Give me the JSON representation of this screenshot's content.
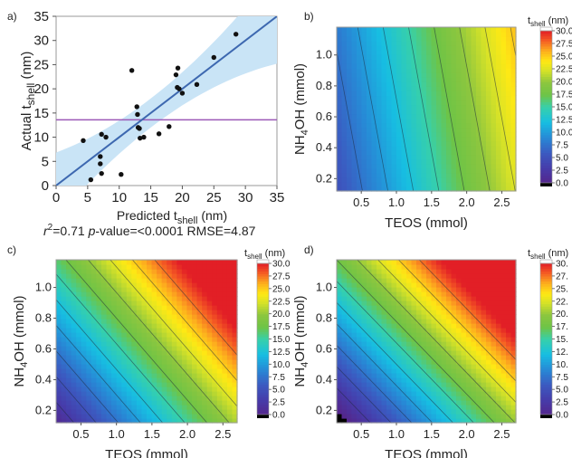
{
  "panels": [
    {
      "letter": "a)",
      "type": "scatter",
      "xlabel": "Predicted t",
      "xlabel_sub": "shell",
      "xlabel_unit": " (nm)",
      "ylabel": "Actual t",
      "ylabel_sub": "shell",
      "ylabel_unit": " (nm)",
      "xlim": [
        0,
        35
      ],
      "ylim": [
        0,
        35
      ],
      "xticks": [
        "0",
        "5",
        "10",
        "15",
        "20",
        "25",
        "30",
        "35"
      ],
      "yticks": [
        "0",
        "5",
        "10",
        "15",
        "20",
        "25",
        "30",
        "35"
      ],
      "points": [
        [
          5.5,
          1.2
        ],
        [
          4.3,
          9.3
        ],
        [
          7,
          6
        ],
        [
          7,
          4.5
        ],
        [
          7.2,
          2.5
        ],
        [
          7.2,
          10.6
        ],
        [
          7.9,
          10
        ],
        [
          10.3,
          2.3
        ],
        [
          12,
          23.8
        ],
        [
          12.8,
          16.3
        ],
        [
          12.9,
          14.7
        ],
        [
          13,
          12
        ],
        [
          13.2,
          11.8
        ],
        [
          13.3,
          9.8
        ],
        [
          13.9,
          10
        ],
        [
          16.3,
          10.7
        ],
        [
          17.9,
          12.2
        ],
        [
          19,
          22.9
        ],
        [
          19.2,
          20.3
        ],
        [
          19.3,
          24.3
        ],
        [
          19.5,
          20
        ],
        [
          20,
          19.1
        ],
        [
          22.3,
          20.9
        ],
        [
          25,
          26.5
        ],
        [
          28.5,
          31.3
        ]
      ],
      "fit_line": [
        [
          0,
          0
        ],
        [
          35,
          35
        ]
      ],
      "mean_line_y": 13.6,
      "colors": {
        "fit": "#3d68b0",
        "band": "#c9e4f6",
        "mean": "#9b59b6",
        "point": "#111111"
      },
      "stats": {
        "r2_label": "r",
        "r2_sup": "2",
        "r2_value": "=0.71 ",
        "pvalue_label": "p",
        "pvalue_value": "-value=<0.0001 RMSE=4.87"
      }
    },
    {
      "letter": "b)",
      "type": "heatmap",
      "xlabel": "TEOS (mmol)",
      "ylabel_pre": "NH",
      "ylabel_sub": "4",
      "ylabel_post": "OH (mmol)",
      "xlim": [
        0.15,
        2.7
      ],
      "ylim": [
        0.12,
        1.18
      ],
      "xticks": [
        "0.5",
        "1.0",
        "1.5",
        "2.0",
        "2.5"
      ],
      "yticks": [
        "0.2",
        "0.4",
        "0.6",
        "0.8",
        "1.0"
      ],
      "surface": {
        "base": 3.6,
        "teos_coef": 6.9,
        "nh4oh_coef": 2.8
      },
      "colorbar": {
        "title": "t",
        "title_sub": "shell",
        "title_unit": " (nm)",
        "ticks": [
          "30.0",
          "27.5",
          "25.0",
          "22.5",
          "20.0",
          "17.5",
          "15.0",
          "12.5",
          "10.0",
          "7.5",
          "5.0",
          "2.5",
          "0.0"
        ]
      }
    },
    {
      "letter": "c)",
      "type": "heatmap",
      "xlabel": "TEOS (mmol)",
      "ylabel_pre": "NH",
      "ylabel_sub": "4",
      "ylabel_post": "OH (mmol)",
      "xlim": [
        0.15,
        2.7
      ],
      "ylim": [
        0.12,
        1.18
      ],
      "xticks": [
        "0.5",
        "1.0",
        "1.5",
        "2.0",
        "2.5"
      ],
      "yticks": [
        "0.2",
        "0.4",
        "0.6",
        "0.8",
        "1.0"
      ],
      "surface": {
        "base": -2.5,
        "teos_coef": 8.0,
        "nh4oh_coef": 15.0
      },
      "colorbar": {
        "title": "t",
        "title_sub": "shell",
        "title_unit": " (nm)",
        "ticks": [
          "30.0",
          "27.5",
          "25.0",
          "22.5",
          "20.0",
          "17.5",
          "15.0",
          "12.5",
          "10.0",
          "7.5",
          "5.0",
          "2.5",
          "0.0"
        ]
      }
    },
    {
      "letter": "d)",
      "type": "heatmap",
      "xlabel": "TEOS (mmol)",
      "ylabel_pre": "NH",
      "ylabel_sub": "4",
      "ylabel_post": "OH (mmol)",
      "xlim": [
        0.15,
        2.7
      ],
      "ylim": [
        0.12,
        1.18
      ],
      "xticks": [
        "0.5",
        "1.0",
        "1.5",
        "2.0",
        "2.5"
      ],
      "yticks": [
        "0.2",
        "0.4",
        "0.6",
        "0.8",
        "1.0"
      ],
      "surface": {
        "base": -5.0,
        "teos_coef": 8.5,
        "nh4oh_coef": 18.0
      },
      "colorbar": {
        "title": "t",
        "title_sub": "shell",
        "title_unit": " (nm)",
        "ticks": [
          "30.",
          "27.",
          "25.",
          "22.",
          "20.",
          "17.",
          "15.",
          "12.",
          "10.",
          "7.5",
          "5.0",
          "2.5",
          "0.0"
        ]
      }
    }
  ],
  "chart_data": [
    {
      "type": "scatter",
      "xlabel": "Predicted tshell (nm)",
      "ylabel": "Actual tshell (nm)",
      "xlim": [
        0,
        35
      ],
      "ylim": [
        0,
        35
      ],
      "annotation": "r2=0.71 p-value=<0.0001 RMSE=4.87",
      "x": [
        5.5,
        4.3,
        7,
        7,
        7.2,
        7.2,
        7.9,
        10.3,
        12,
        12.8,
        12.9,
        13,
        13.2,
        13.3,
        13.9,
        16.3,
        17.9,
        19,
        19.2,
        19.3,
        19.5,
        20,
        22.3,
        25,
        28.5
      ],
      "y": [
        1.2,
        9.3,
        6,
        4.5,
        2.5,
        10.6,
        10,
        2.3,
        23.8,
        16.3,
        14.7,
        12,
        11.8,
        9.8,
        10,
        10.7,
        12.2,
        22.9,
        20.3,
        24.3,
        20,
        19.1,
        20.9,
        26.5,
        31.3
      ],
      "grid": false
    },
    {
      "type": "heatmap",
      "xlabel": "TEOS (mmol)",
      "ylabel": "NH4OH (mmol)",
      "zlabel": "tshell (nm)",
      "zlim": [
        0,
        30
      ]
    },
    {
      "type": "heatmap",
      "xlabel": "TEOS (mmol)",
      "ylabel": "NH4OH (mmol)",
      "zlabel": "tshell (nm)",
      "zlim": [
        0,
        30
      ]
    },
    {
      "type": "heatmap",
      "xlabel": "TEOS (mmol)",
      "ylabel": "NH4OH (mmol)",
      "zlabel": "tshell (nm)",
      "zlim": [
        0,
        30
      ]
    }
  ]
}
